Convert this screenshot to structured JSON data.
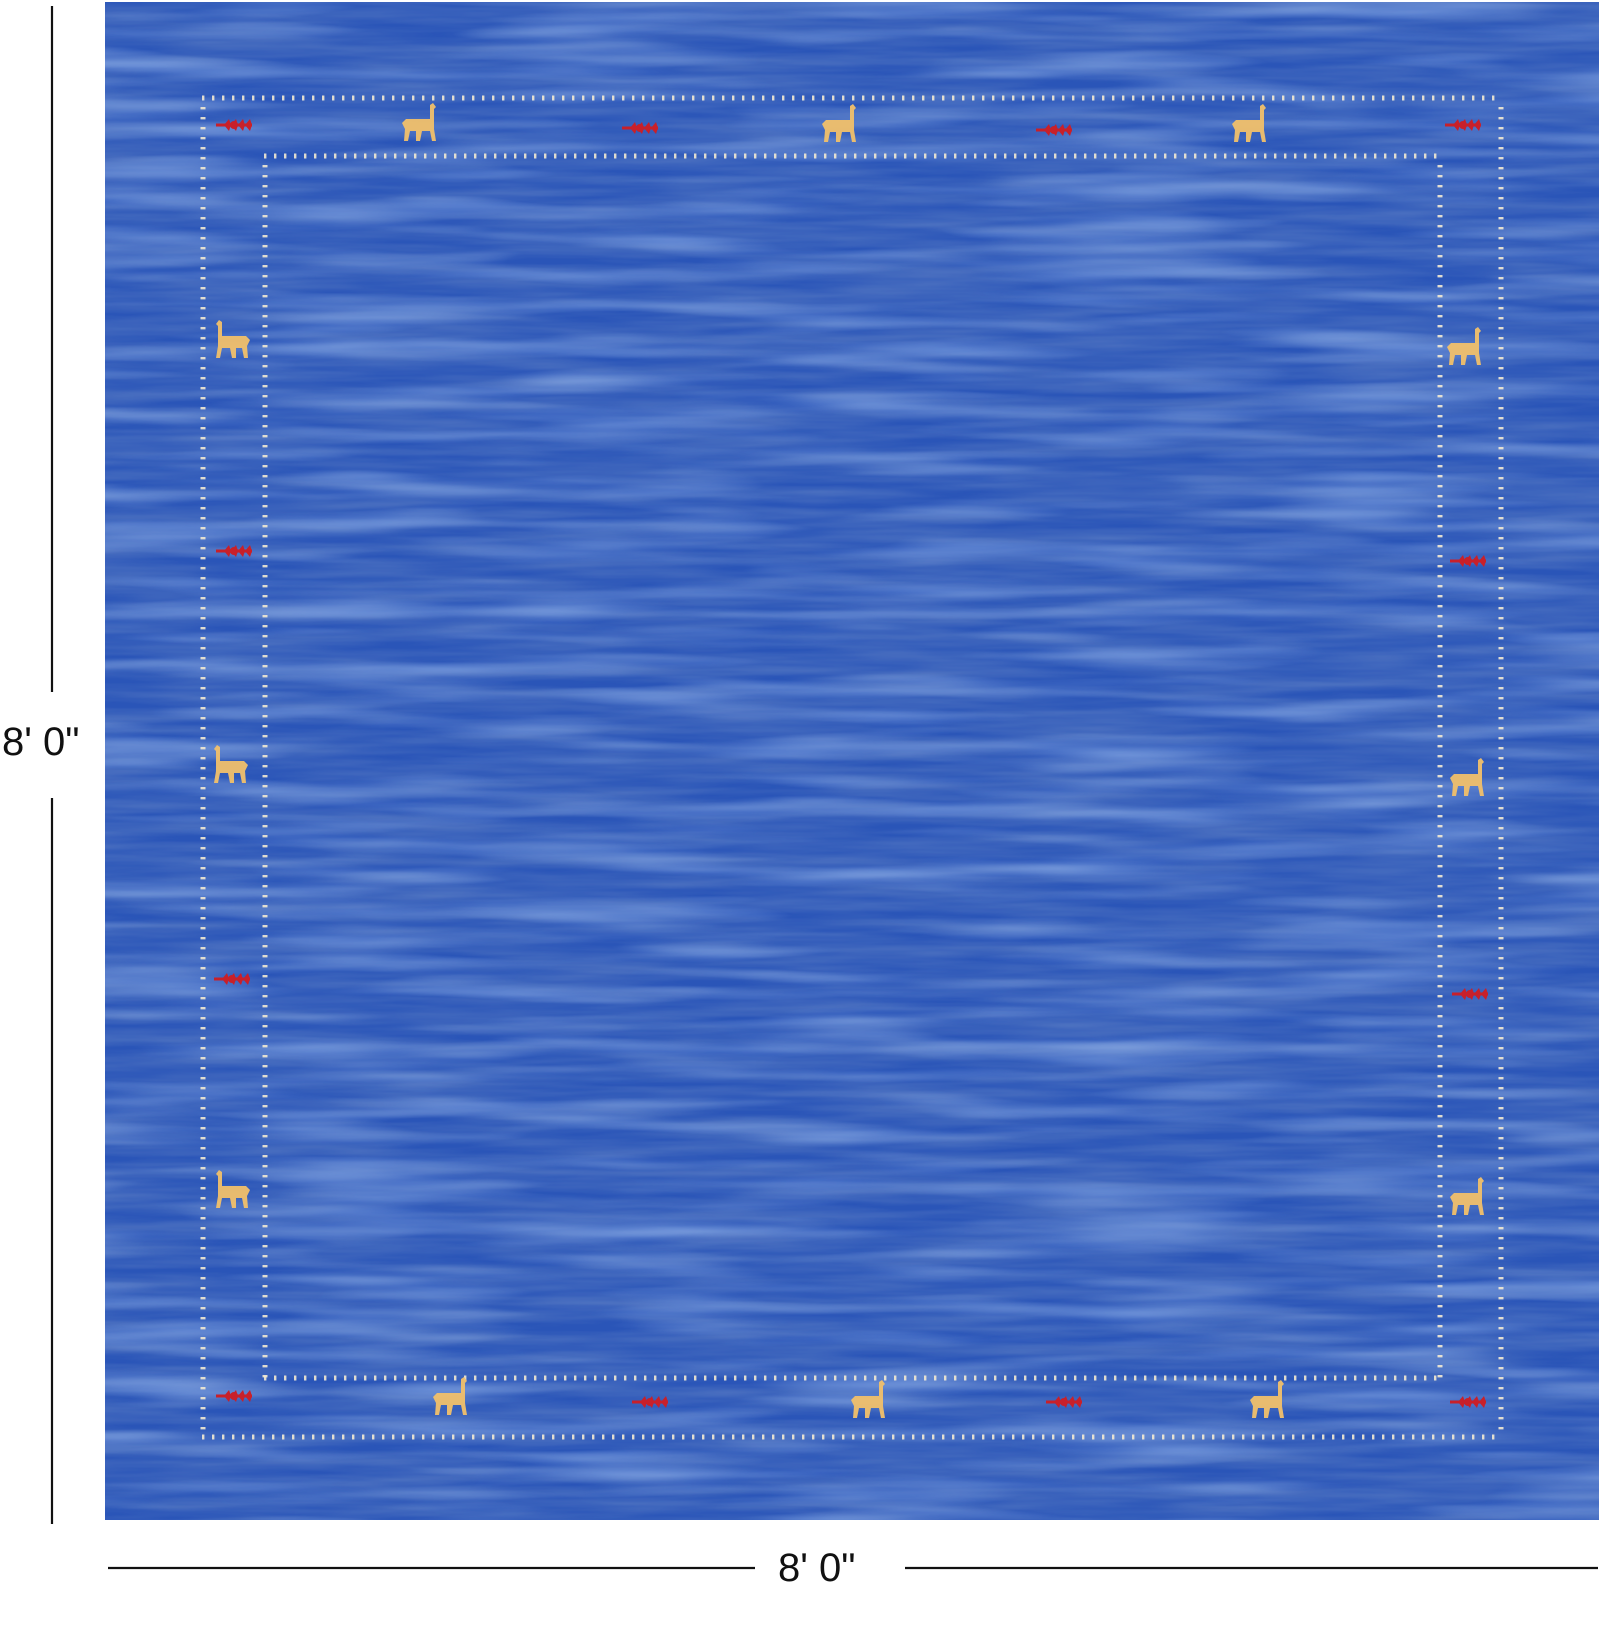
{
  "rug": {
    "field_color": "#2a55b8",
    "field_color_dark": "#1b3a8c",
    "field_color_light": "#4a78d6",
    "dot_color": "#f3ead2",
    "motif_animal_color": "#f1c06a",
    "motif_flower_color": "#c8202a",
    "motif_animal_icon": "animal-motif-icon",
    "motif_flower_icon": "flower-motif-icon"
  },
  "dimensions": {
    "height_label": "8' 0\"",
    "width_label": "8' 0\""
  },
  "colors": {
    "dimension_line": "#111111",
    "background": "#ffffff"
  }
}
